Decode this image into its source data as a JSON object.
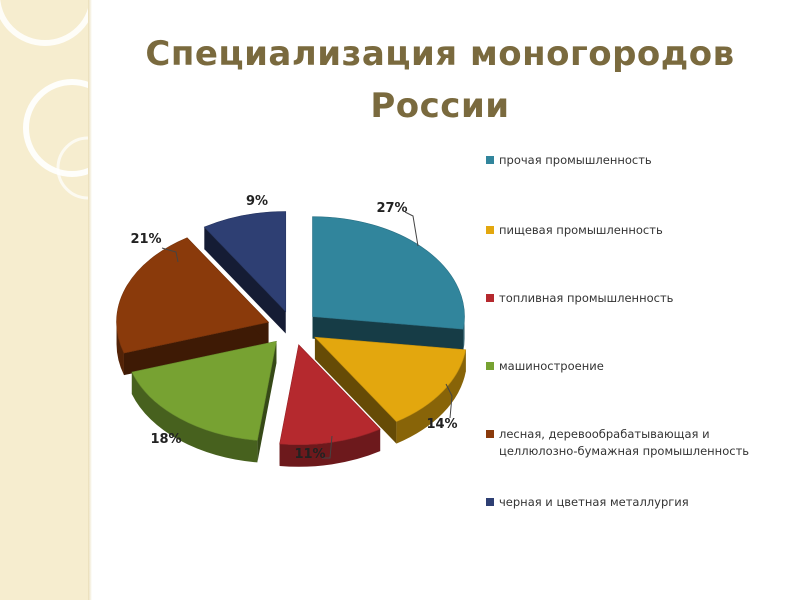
{
  "title": {
    "line1": "Специализация моногородов",
    "line2": "России"
  },
  "colors": {
    "title": "#7a6a3e",
    "panel": "#f6edcf"
  },
  "chart_data": {
    "type": "pie",
    "title": "",
    "legend_position": "right",
    "series": [
      {
        "label": "прочая промышленность",
        "value": 27,
        "display": "27%",
        "color": "#31859c"
      },
      {
        "label": "пищевая промышленность",
        "value": 14,
        "display": "14%",
        "color": "#e3a70e"
      },
      {
        "label": "топливная промышленность",
        "value": 11,
        "display": "11%",
        "color": "#b5292e"
      },
      {
        "label": "машиностроение",
        "value": 18,
        "display": "18%",
        "color": "#77a232"
      },
      {
        "label": "лесная, деревообрабатывающая и целлюлозно-бумажная промышленность",
        "value": 21,
        "display": "21%",
        "color": "#8a3a0b"
      },
      {
        "label": "черная и цветная металлургия",
        "value": 9,
        "display": "9%",
        "color": "#2e3f73"
      }
    ]
  }
}
